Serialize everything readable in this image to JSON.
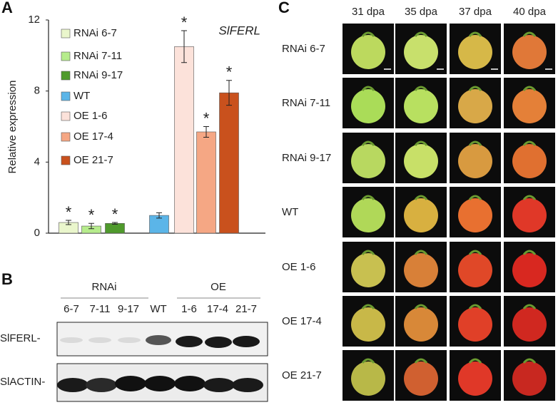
{
  "panel_labels": [
    "A",
    "B",
    "C"
  ],
  "chart_data": {
    "type": "bar",
    "title": "SlFERL",
    "y_label": "Relative expression",
    "categories": [
      "RNAi 6-7",
      "RNAi 7-11",
      "RNAi 9-17",
      "WT",
      "OE 1-6",
      "OE 17-4",
      "OE 21-7"
    ],
    "values": [
      0.6,
      0.4,
      0.55,
      1.0,
      10.5,
      5.7,
      7.9
    ],
    "errors": [
      0.12,
      0.15,
      0.05,
      0.15,
      0.9,
      0.3,
      0.7
    ],
    "annotations": [
      "*",
      "*",
      "*",
      null,
      "*",
      "*",
      "*"
    ],
    "colors": [
      "#eaf6cc",
      "#b6ec8c",
      "#4f9a2c",
      "#5bb5e8",
      "#fce2da",
      "#f5a784",
      "#c9511d"
    ],
    "ylim": [
      0,
      12
    ],
    "yticks": [
      0,
      4,
      8,
      12
    ],
    "legend": "upper-left"
  },
  "blot": {
    "groups": [
      "RNAi",
      "OE"
    ],
    "lanes": [
      "6-7",
      "7-11",
      "9-17",
      "WT",
      "1-6",
      "17-4",
      "21-7"
    ],
    "rows": [
      "SlFERL-",
      "SlACTIN-"
    ]
  },
  "photos": {
    "columns": [
      "31 dpa",
      "35 dpa",
      "37 dpa",
      "40 dpa"
    ],
    "rows": [
      "RNAi 6-7",
      "RNAi 7-11",
      "RNAi 9-17",
      "WT",
      "OE 1-6",
      "OE 17-4",
      "OE 21-7"
    ]
  }
}
